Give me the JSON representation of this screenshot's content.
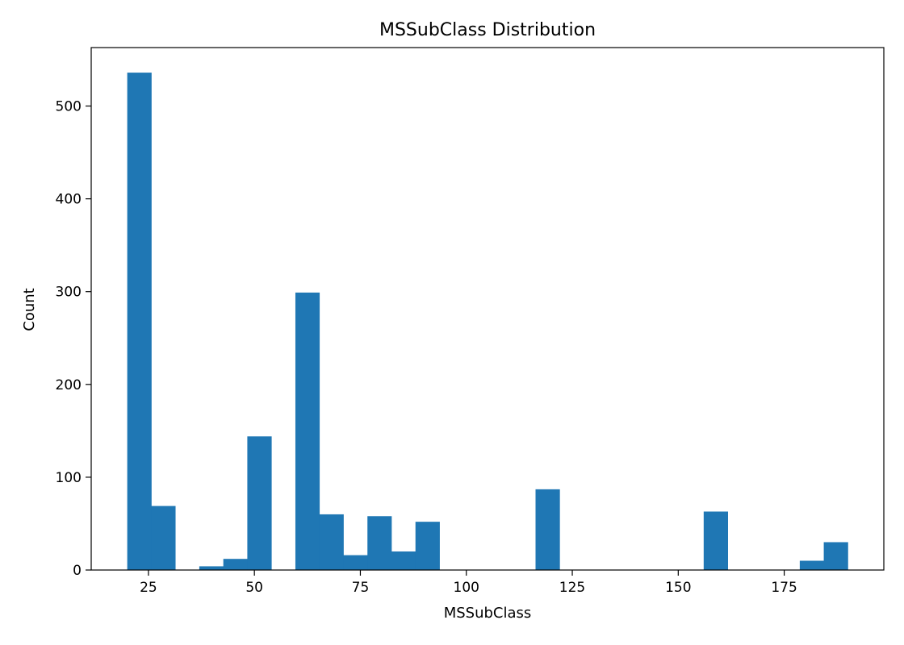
{
  "chart_data": {
    "type": "bar",
    "title": "MSSubClass Distribution",
    "xlabel": "MSSubClass",
    "ylabel": "Count",
    "bar_color": "#1f77b4",
    "xlim": [
      11.5,
      198.5
    ],
    "ylim": [
      0,
      563
    ],
    "grid": false,
    "legend": "none",
    "x_ticks": [
      25,
      50,
      75,
      100,
      125,
      150,
      175
    ],
    "y_ticks": [
      0,
      100,
      200,
      300,
      400,
      500
    ],
    "bins": [
      {
        "x0": 20.0,
        "x1": 25.67,
        "value": 536
      },
      {
        "x0": 25.67,
        "x1": 31.33,
        "value": 69
      },
      {
        "x0": 31.33,
        "x1": 37.0,
        "value": 0
      },
      {
        "x0": 37.0,
        "x1": 42.67,
        "value": 4
      },
      {
        "x0": 42.67,
        "x1": 48.33,
        "value": 12
      },
      {
        "x0": 48.33,
        "x1": 54.0,
        "value": 144
      },
      {
        "x0": 54.0,
        "x1": 59.67,
        "value": 0
      },
      {
        "x0": 59.67,
        "x1": 65.33,
        "value": 299
      },
      {
        "x0": 65.33,
        "x1": 71.0,
        "value": 60
      },
      {
        "x0": 71.0,
        "x1": 76.67,
        "value": 16
      },
      {
        "x0": 76.67,
        "x1": 82.33,
        "value": 58
      },
      {
        "x0": 82.33,
        "x1": 88.0,
        "value": 20
      },
      {
        "x0": 88.0,
        "x1": 93.67,
        "value": 52
      },
      {
        "x0": 93.67,
        "x1": 99.33,
        "value": 0
      },
      {
        "x0": 99.33,
        "x1": 105.0,
        "value": 0
      },
      {
        "x0": 105.0,
        "x1": 110.67,
        "value": 0
      },
      {
        "x0": 110.67,
        "x1": 116.33,
        "value": 0
      },
      {
        "x0": 116.33,
        "x1": 122.0,
        "value": 87
      },
      {
        "x0": 122.0,
        "x1": 127.67,
        "value": 0
      },
      {
        "x0": 127.67,
        "x1": 133.33,
        "value": 0
      },
      {
        "x0": 133.33,
        "x1": 139.0,
        "value": 0
      },
      {
        "x0": 139.0,
        "x1": 144.67,
        "value": 0
      },
      {
        "x0": 144.67,
        "x1": 150.33,
        "value": 0
      },
      {
        "x0": 150.33,
        "x1": 156.0,
        "value": 0
      },
      {
        "x0": 156.0,
        "x1": 161.67,
        "value": 63
      },
      {
        "x0": 161.67,
        "x1": 167.33,
        "value": 0
      },
      {
        "x0": 167.33,
        "x1": 173.0,
        "value": 0
      },
      {
        "x0": 173.0,
        "x1": 178.67,
        "value": 0
      },
      {
        "x0": 178.67,
        "x1": 184.33,
        "value": 10
      },
      {
        "x0": 184.33,
        "x1": 190.0,
        "value": 30
      }
    ]
  }
}
